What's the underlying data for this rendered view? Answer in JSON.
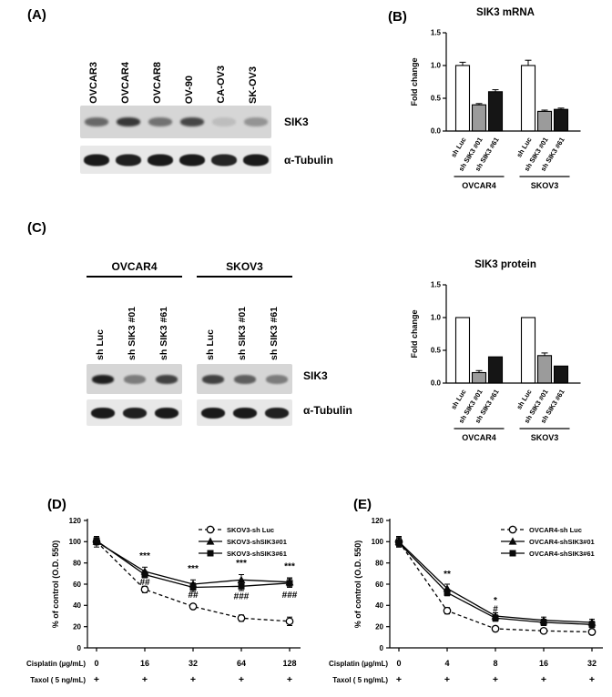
{
  "figure": {
    "panels": {
      "a": {
        "label": "(A)",
        "lanes": [
          "OVCAR3",
          "OVCAR4",
          "OVCAR8",
          "OV-90",
          "CA-OV3",
          "SK-OV3"
        ],
        "rows": [
          {
            "label": "SIK3",
            "intensities": [
              0.55,
              0.8,
              0.5,
              0.72,
              0.12,
              0.33
            ]
          },
          {
            "label": "α-Tubulin",
            "intensities": [
              0.95,
              0.92,
              0.95,
              0.95,
              0.9,
              0.95
            ]
          }
        ]
      },
      "b": {
        "label": "(B)",
        "chart": {
          "type": "bar",
          "title": "SIK3 mRNA",
          "ylabel": "Fold change",
          "ylim": [
            0,
            1.5
          ],
          "yticks": [
            {
              "v": 0,
              "label": "0.0"
            },
            {
              "v": 0.5,
              "label": "0.5"
            },
            {
              "v": 1,
              "label": "1.0"
            },
            {
              "v": 1.5,
              "label": "1.5"
            }
          ],
          "groups": [
            {
              "name": "OVCAR4",
              "bars": [
                {
                  "label": "sh Luc",
                  "value": 1.0,
                  "error": 0.05,
                  "fill": "white"
                },
                {
                  "label": "sh SIK3 #01",
                  "value": 0.4,
                  "error": 0.02,
                  "fill": "gray"
                },
                {
                  "label": "sh SIK3 #61",
                  "value": 0.6,
                  "error": 0.03,
                  "fill": "black"
                }
              ]
            },
            {
              "name": "SKOV3",
              "bars": [
                {
                  "label": "sh Luc",
                  "value": 1.0,
                  "error": 0.08,
                  "fill": "white"
                },
                {
                  "label": "sh SIK3 #01",
                  "value": 0.3,
                  "error": 0.02,
                  "fill": "gray"
                },
                {
                  "label": "sh SIK3 #61",
                  "value": 0.33,
                  "error": 0.02,
                  "fill": "black"
                }
              ]
            }
          ]
        }
      },
      "c": {
        "label": "(C)",
        "blot": {
          "groups": [
            {
              "name": "OVCAR4",
              "lanes": [
                "sh Luc",
                "sh SIK3 #01",
                "sh SIK3 #61"
              ]
            },
            {
              "name": "SKOV3",
              "lanes": [
                "sh Luc",
                "sh SIK3 #01",
                "sh SIK3 #61"
              ]
            }
          ],
          "rows": [
            {
              "label": "SIK3",
              "intensities": [
                [
                  0.92,
                  0.45,
                  0.75
                ],
                [
                  0.75,
                  0.6,
                  0.45
                ]
              ]
            },
            {
              "label": "α-Tubulin",
              "intensities": [
                [
                  0.95,
                  0.92,
                  0.95
                ],
                [
                  0.95,
                  0.95,
                  0.92
                ]
              ]
            }
          ]
        },
        "chart": {
          "type": "bar",
          "title": "SIK3 protein",
          "ylabel": "Fold change",
          "ylim": [
            0,
            1.5
          ],
          "yticks": [
            {
              "v": 0,
              "label": "0.0"
            },
            {
              "v": 0.5,
              "label": "0.5"
            },
            {
              "v": 1,
              "label": "1.0"
            },
            {
              "v": 1.5,
              "label": "1.5"
            }
          ],
          "groups": [
            {
              "name": "OVCAR4",
              "bars": [
                {
                  "label": "sh Luc",
                  "value": 1.0,
                  "error": 0,
                  "fill": "white"
                },
                {
                  "label": "sh SIK3 #01",
                  "value": 0.16,
                  "error": 0.03,
                  "fill": "gray"
                },
                {
                  "label": "sh SIK3 #61",
                  "value": 0.4,
                  "error": 0,
                  "fill": "black"
                }
              ]
            },
            {
              "name": "SKOV3",
              "bars": [
                {
                  "label": "sh Luc",
                  "value": 1.0,
                  "error": 0,
                  "fill": "white"
                },
                {
                  "label": "sh SIK3 #01",
                  "value": 0.42,
                  "error": 0.04,
                  "fill": "gray"
                },
                {
                  "label": "sh SIK3 #61",
                  "value": 0.26,
                  "error": 0,
                  "fill": "black"
                }
              ]
            }
          ]
        }
      },
      "d": {
        "label": "(D)",
        "chart": {
          "type": "line",
          "ylabel": "% of control (O.D. 550)",
          "ylim": [
            0,
            120
          ],
          "yticks": [
            0,
            20,
            40,
            60,
            80,
            100,
            120
          ],
          "x_labels": [
            "0",
            "16",
            "32",
            "64",
            "128"
          ],
          "xrows": [
            {
              "label": "Cisplatin (µg/mL)",
              "values": [
                "0",
                "16",
                "32",
                "64",
                "128"
              ]
            },
            {
              "label": "Taxol ( 5 ng/mL)",
              "values": [
                "+",
                "+",
                "+",
                "+",
                "+"
              ]
            }
          ],
          "series": [
            {
              "name": "SKOV3-sh Luc",
              "marker": "circle-open",
              "dash": true,
              "values": [
                100,
                55,
                39,
                28,
                25
              ],
              "errors": [
                5,
                3,
                2,
                3,
                4
              ]
            },
            {
              "name": "SKOV3-shSIK3#01",
              "marker": "triangle",
              "dash": false,
              "values": [
                100,
                72,
                60,
                64,
                62
              ],
              "errors": [
                3,
                4,
                4,
                5,
                4
              ]
            },
            {
              "name": "SKOV3-shSIK3#61",
              "marker": "square",
              "dash": false,
              "values": [
                101,
                69,
                57,
                58,
                61
              ],
              "errors": [
                3,
                3,
                4,
                4,
                4
              ]
            }
          ],
          "annotations": [
            {
              "xi": 1,
              "v": 84,
              "text": "***"
            },
            {
              "xi": 1,
              "v": 59,
              "text": "##"
            },
            {
              "xi": 2,
              "v": 72,
              "text": "***"
            },
            {
              "xi": 2,
              "v": 47,
              "text": "##"
            },
            {
              "xi": 3,
              "v": 77,
              "text": "***"
            },
            {
              "xi": 3,
              "v": 46,
              "text": "###"
            },
            {
              "xi": 4,
              "v": 74,
              "text": "***"
            },
            {
              "xi": 4,
              "v": 47,
              "text": "###"
            }
          ]
        }
      },
      "e": {
        "label": "(E)",
        "chart": {
          "type": "line",
          "ylabel": "% of control (O.D. 550)",
          "ylim": [
            0,
            120
          ],
          "yticks": [
            0,
            20,
            40,
            60,
            80,
            100,
            120
          ],
          "x_labels": [
            "0",
            "4",
            "8",
            "16",
            "32"
          ],
          "xrows": [
            {
              "label": "Cisplatin (µg/mL)",
              "values": [
                "0",
                "4",
                "8",
                "16",
                "32"
              ]
            },
            {
              "label": "Taxol ( 5 ng/mL)",
              "values": [
                "+",
                "+",
                "+",
                "+",
                "+"
              ]
            }
          ],
          "series": [
            {
              "name": "OVCAR4-sh Luc",
              "marker": "circle-open",
              "dash": true,
              "values": [
                100,
                35,
                18,
                16,
                15
              ],
              "errors": [
                4,
                3,
                2,
                2,
                2
              ]
            },
            {
              "name": "OVCAR4-shSIK3#01",
              "marker": "triangle",
              "dash": false,
              "values": [
                100,
                56,
                30,
                26,
                24
              ],
              "errors": [
                5,
                4,
                3,
                3,
                3
              ]
            },
            {
              "name": "OVCAR4-shSIK3#61",
              "marker": "square",
              "dash": false,
              "values": [
                99,
                52,
                28,
                24,
                22
              ],
              "errors": [
                4,
                3,
                3,
                3,
                3
              ]
            }
          ],
          "annotations": [
            {
              "xi": 1,
              "v": 67,
              "text": "**"
            },
            {
              "xi": 2,
              "v": 42,
              "text": "*"
            },
            {
              "xi": 2,
              "v": 34,
              "text": "#"
            }
          ]
        }
      }
    }
  }
}
